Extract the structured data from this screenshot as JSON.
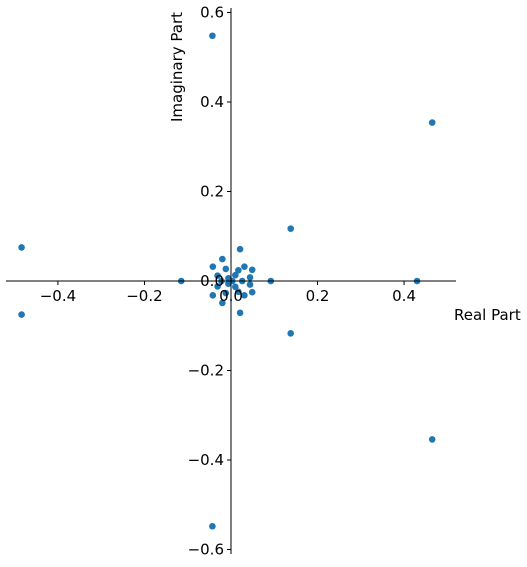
{
  "chart_data": {
    "type": "scatter",
    "title": "",
    "xlabel": "Real Part",
    "ylabel": "Imaginary Part",
    "xlim": [
      -0.52,
      0.52
    ],
    "ylim": [
      -0.61,
      0.61
    ],
    "grid": false,
    "spines": "centered",
    "marker_color": "#1f77b4",
    "x_ticks": [
      {
        "value": -0.4,
        "label": "−0.4"
      },
      {
        "value": -0.2,
        "label": "−0.2"
      },
      {
        "value": 0.0,
        "label": "0.0"
      },
      {
        "value": 0.2,
        "label": "0.2"
      },
      {
        "value": 0.4,
        "label": "0.4"
      }
    ],
    "y_ticks": [
      {
        "value": 0.6,
        "label": "0.6"
      },
      {
        "value": 0.4,
        "label": "0.4"
      },
      {
        "value": 0.2,
        "label": "0.2"
      },
      {
        "value": 0.0,
        "label": "0.0"
      },
      {
        "value": -0.2,
        "label": "−0.2"
      },
      {
        "value": -0.4,
        "label": "−0.4"
      },
      {
        "value": -0.6,
        "label": "−0.6"
      }
    ],
    "points": [
      {
        "x": -0.043,
        "y": 0.548
      },
      {
        "x": -0.043,
        "y": -0.548
      },
      {
        "x": 0.465,
        "y": 0.354
      },
      {
        "x": 0.465,
        "y": -0.354
      },
      {
        "x": -0.484,
        "y": 0.075
      },
      {
        "x": -0.484,
        "y": -0.075
      },
      {
        "x": 0.138,
        "y": 0.117
      },
      {
        "x": 0.138,
        "y": -0.117
      },
      {
        "x": 0.43,
        "y": 0.0
      },
      {
        "x": -0.115,
        "y": 0.0
      },
      {
        "x": 0.092,
        "y": 0.0
      },
      {
        "x": 0.021,
        "y": 0.071
      },
      {
        "x": 0.021,
        "y": -0.071
      },
      {
        "x": -0.02,
        "y": 0.049
      },
      {
        "x": -0.02,
        "y": -0.049
      },
      {
        "x": 0.049,
        "y": 0.025
      },
      {
        "x": 0.049,
        "y": -0.025
      },
      {
        "x": -0.042,
        "y": 0.032
      },
      {
        "x": -0.042,
        "y": -0.032
      },
      {
        "x": 0.031,
        "y": 0.032
      },
      {
        "x": 0.031,
        "y": -0.032
      },
      {
        "x": 0.017,
        "y": 0.024
      },
      {
        "x": 0.017,
        "y": -0.024
      },
      {
        "x": 0.044,
        "y": 0.008
      },
      {
        "x": 0.044,
        "y": -0.008
      },
      {
        "x": -0.012,
        "y": 0.027
      },
      {
        "x": -0.012,
        "y": -0.027
      },
      {
        "x": -0.031,
        "y": 0.012
      },
      {
        "x": -0.031,
        "y": -0.012
      },
      {
        "x": 0.01,
        "y": 0.013
      },
      {
        "x": 0.01,
        "y": -0.013
      },
      {
        "x": -0.006,
        "y": 0.006
      },
      {
        "x": -0.006,
        "y": -0.006
      },
      {
        "x": 0.026,
        "y": 0.0
      },
      {
        "x": -0.022,
        "y": 0.0
      },
      {
        "x": 0.003,
        "y": 0.0
      }
    ]
  }
}
